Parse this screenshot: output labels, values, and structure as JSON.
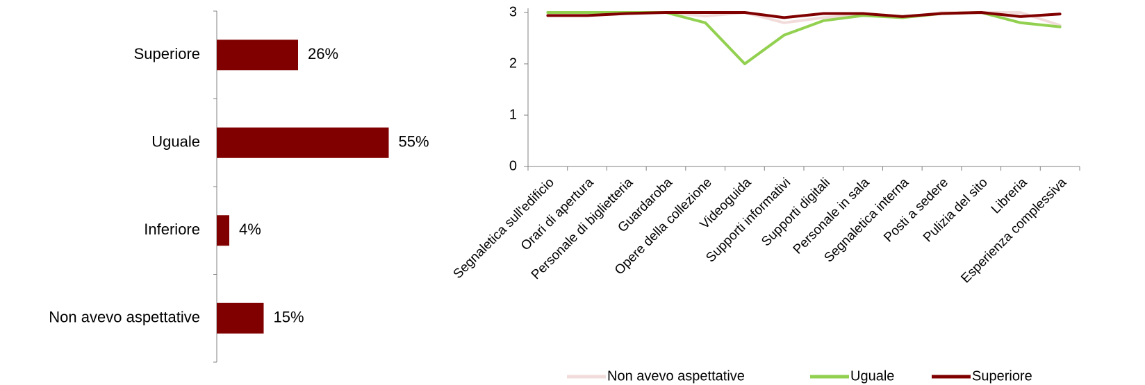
{
  "colors": {
    "bar": "#800000",
    "axis": "#808080",
    "text": "#000000"
  },
  "chart_data": [
    {
      "type": "bar",
      "orientation": "horizontal",
      "categories": [
        "Superiore",
        "Uguale",
        "Inferiore",
        "Non avevo aspettative"
      ],
      "values": [
        26,
        55,
        4,
        15
      ],
      "value_labels": [
        "26%",
        "55%",
        "4%",
        "15%"
      ],
      "unit": "%",
      "xlim": [
        0,
        100
      ],
      "grid": false
    },
    {
      "type": "line",
      "categories": [
        "Segnaletica sull'edificio",
        "Orari di apertura",
        "Personale di biglietteria",
        "Guardaroba",
        "Opere della collezione",
        "Videoguida",
        "Supporti informativi",
        "Supporti digitali",
        "Personale in sala",
        "Segnaletica interna",
        "Posti a sedere",
        "Pulizia del sito",
        "Libreria",
        "Esperienza complessiva"
      ],
      "yticks": [
        "0",
        "1",
        "2",
        "3"
      ],
      "ylim": [
        0,
        3
      ],
      "grid": false,
      "legend_position": "bottom",
      "series": [
        {
          "name": "Non avevo aspettative",
          "color": "#f2dcdb",
          "values": [
            3.0,
            3.0,
            3.0,
            3.0,
            2.93,
            3.0,
            2.8,
            2.9,
            2.95,
            2.9,
            3.0,
            3.0,
            3.0,
            2.75
          ]
        },
        {
          "name": "Uguale",
          "color": "#92d050",
          "values": [
            3.0,
            3.0,
            3.0,
            3.0,
            2.8,
            2.0,
            2.56,
            2.84,
            2.94,
            2.9,
            2.98,
            3.0,
            2.8,
            2.72
          ]
        },
        {
          "name": "Superiore",
          "color": "#800000",
          "values": [
            2.94,
            2.94,
            2.98,
            3.0,
            3.0,
            3.0,
            2.9,
            2.98,
            2.98,
            2.92,
            2.98,
            3.0,
            2.92,
            2.97
          ]
        }
      ]
    }
  ]
}
